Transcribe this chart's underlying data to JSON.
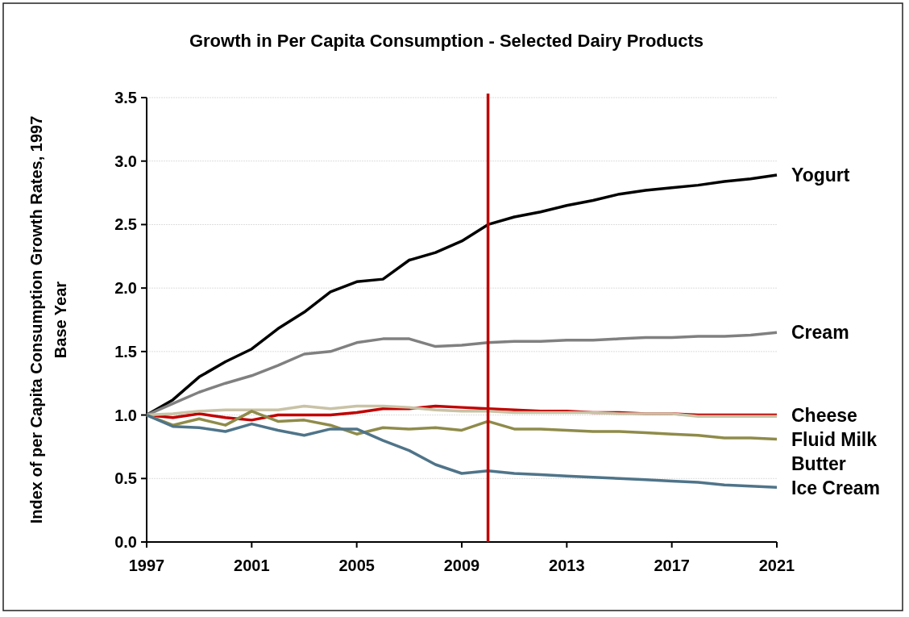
{
  "chart_data": {
    "type": "line",
    "title": "Growth in Per Capita Consumption - Selected Dairy Products",
    "ylabel": "Index of per Capita Consumption Growth Rates, 1997 Base Year",
    "x": [
      1997,
      1998,
      1999,
      2000,
      2001,
      2002,
      2003,
      2004,
      2005,
      2006,
      2007,
      2008,
      2009,
      2010,
      2011,
      2012,
      2013,
      2014,
      2015,
      2016,
      2017,
      2018,
      2019,
      2020,
      2021
    ],
    "xlim": [
      1997,
      2021
    ],
    "xticks": [
      1997,
      2001,
      2005,
      2009,
      2013,
      2017,
      2021
    ],
    "ylim": [
      0,
      3.5
    ],
    "yticks": [
      {
        "value": 0,
        "label": "0.0"
      },
      {
        "value": 0.5,
        "label": "0.5"
      },
      {
        "value": 1,
        "label": "1.0"
      },
      {
        "value": 1.5,
        "label": "1.5"
      },
      {
        "value": 2,
        "label": "2.0"
      },
      {
        "value": 2.5,
        "label": "2.5"
      },
      {
        "value": 3,
        "label": "3.0"
      },
      {
        "value": 3.5,
        "label": "3.5"
      }
    ],
    "grid": "y",
    "ref_lines": [
      {
        "axis": "x",
        "value": 2010,
        "color": "#c00000"
      }
    ],
    "series": [
      {
        "name": "Yogurt",
        "color": "#000000",
        "values": [
          1.0,
          1.12,
          1.3,
          1.42,
          1.52,
          1.68,
          1.81,
          1.97,
          2.05,
          2.07,
          2.22,
          2.28,
          2.37,
          2.5,
          2.56,
          2.6,
          2.65,
          2.69,
          2.74,
          2.77,
          2.79,
          2.81,
          2.84,
          2.86,
          2.89
        ]
      },
      {
        "name": "Cream",
        "color": "#808080",
        "values": [
          1.0,
          1.09,
          1.18,
          1.25,
          1.31,
          1.39,
          1.48,
          1.5,
          1.57,
          1.6,
          1.6,
          1.54,
          1.55,
          1.57,
          1.58,
          1.58,
          1.59,
          1.59,
          1.6,
          1.61,
          1.61,
          1.62,
          1.62,
          1.63,
          1.65
        ]
      },
      {
        "name": "Cheese",
        "color": "#c00000",
        "values": [
          1.0,
          0.98,
          1.01,
          0.98,
          0.96,
          1.0,
          1.0,
          1.0,
          1.02,
          1.05,
          1.05,
          1.07,
          1.06,
          1.05,
          1.04,
          1.03,
          1.03,
          1.02,
          1.02,
          1.01,
          1.01,
          1.0,
          1.0,
          1.0,
          1.0
        ]
      },
      {
        "name": "Fluid Milk",
        "color": "#c9c2a6",
        "values": [
          1.0,
          1.01,
          1.03,
          1.04,
          1.04,
          1.04,
          1.07,
          1.05,
          1.07,
          1.07,
          1.06,
          1.04,
          1.03,
          1.03,
          1.02,
          1.02,
          1.02,
          1.02,
          1.01,
          1.01,
          1.01,
          0.99,
          0.99,
          0.99,
          0.99
        ]
      },
      {
        "name": "Butter",
        "color": "#8f8b4a",
        "values": [
          1.0,
          0.92,
          0.97,
          0.92,
          1.03,
          0.95,
          0.96,
          0.92,
          0.85,
          0.9,
          0.89,
          0.9,
          0.88,
          0.95,
          0.89,
          0.89,
          0.88,
          0.87,
          0.87,
          0.86,
          0.85,
          0.84,
          0.82,
          0.82,
          0.81
        ]
      },
      {
        "name": "Ice Cream",
        "color": "#4f7489",
        "values": [
          1.0,
          0.91,
          0.9,
          0.87,
          0.93,
          0.88,
          0.84,
          0.89,
          0.89,
          0.8,
          0.72,
          0.61,
          0.54,
          0.56,
          0.54,
          0.53,
          0.52,
          0.51,
          0.5,
          0.49,
          0.48,
          0.47,
          0.45,
          0.44,
          0.43
        ]
      }
    ]
  }
}
